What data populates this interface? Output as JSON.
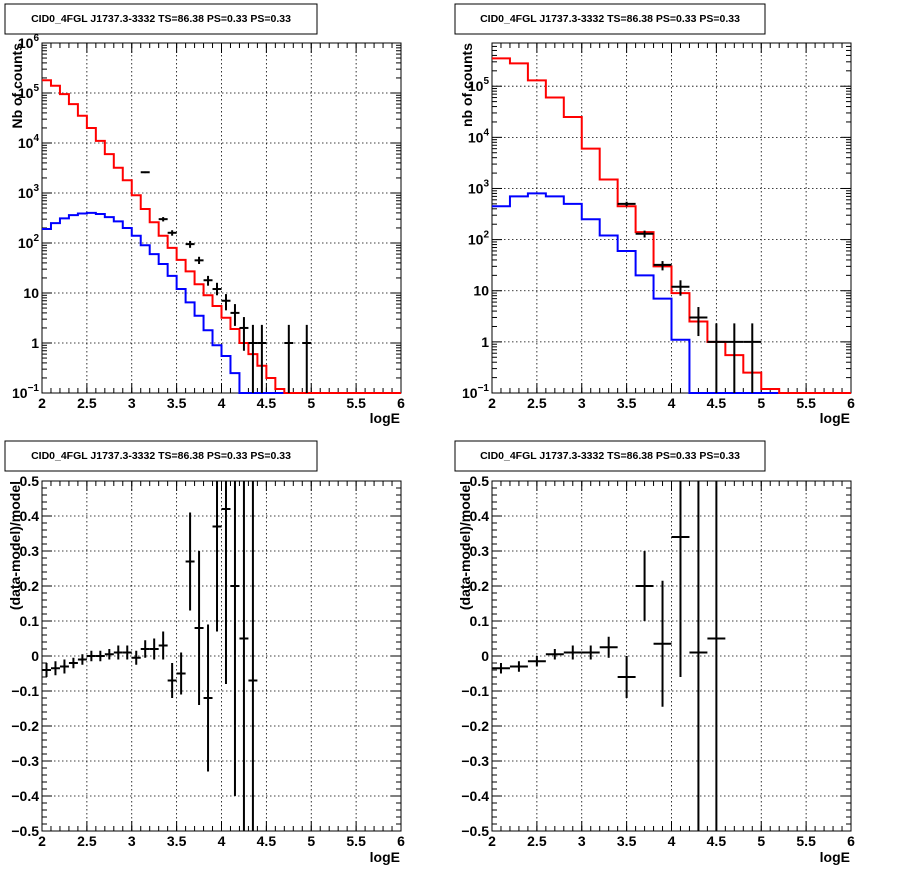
{
  "chart_data": [
    {
      "id": "top-left",
      "type": "histogram",
      "title": "CID0_4FGL J1737.3-3332 TS=86.38 PS=0.33 PS=0.33",
      "xlabel": "logE",
      "ylabel": "Nb of counts",
      "xlim": [
        2,
        6
      ],
      "ylim": [
        0.1,
        1000000
      ],
      "yscale": "log",
      "grid": true,
      "xticks": [
        "2",
        "2.5",
        "3",
        "3.5",
        "4",
        "4.5",
        "5",
        "5.5",
        "6"
      ],
      "yticks": [
        {
          "v": 0.1,
          "base": "10",
          "exp": "−1"
        },
        {
          "v": 1,
          "label": "1"
        },
        {
          "v": 10,
          "label": "10"
        },
        {
          "v": 100,
          "base": "10",
          "exp": "2"
        },
        {
          "v": 1000,
          "base": "10",
          "exp": "3"
        },
        {
          "v": 10000,
          "base": "10",
          "exp": "4"
        },
        {
          "v": 100000,
          "base": "10",
          "exp": "5"
        },
        {
          "v": 1000000,
          "base": "10",
          "exp": "6"
        }
      ],
      "bin_edges": [
        2.0,
        2.1,
        2.2,
        2.3,
        2.4,
        2.5,
        2.6,
        2.7,
        2.8,
        2.9,
        3.0,
        3.1,
        3.2,
        3.3,
        3.4,
        3.5,
        3.6,
        3.7,
        3.8,
        3.9,
        4.0,
        4.1,
        4.2,
        4.3,
        4.4,
        4.5,
        4.6,
        4.7,
        4.8,
        4.9,
        5.0,
        5.1,
        5.2,
        5.3,
        5.4,
        5.5,
        5.6,
        5.7,
        5.8,
        5.9,
        6.0
      ],
      "series": [
        {
          "kind": "step",
          "color": "#0000ff",
          "values": [
            190,
            250,
            310,
            360,
            390,
            400,
            380,
            330,
            270,
            200,
            140,
            90,
            60,
            38,
            22,
            12,
            6.5,
            3.5,
            1.8,
            0.9,
            0.55,
            0.25,
            0.1,
            0.1,
            0.1,
            0.1,
            0.1,
            0.1,
            0.1,
            0.1,
            0.1,
            0.1,
            0.1,
            0.1,
            0.1,
            0.1,
            0.1,
            0.1,
            0.1,
            0.1
          ]
        },
        {
          "kind": "step",
          "color": "#ff0000",
          "values": [
            180000,
            140000,
            95000,
            60000,
            35000,
            20000,
            11000,
            6000,
            3200,
            1800,
            900,
            480,
            260,
            140,
            80,
            46,
            27,
            15,
            9,
            5.5,
            3.2,
            1.9,
            1.0,
            0.6,
            0.35,
            0.2,
            0.12,
            0.1,
            0.1,
            0.1,
            0.1,
            0.1,
            0.1,
            0.1,
            0.1,
            0.1,
            0.1,
            0.1,
            0.1,
            0.1
          ]
        },
        {
          "kind": "errorbars",
          "color": "#000000",
          "points": [
            {
              "x": 3.15,
              "y": 2600,
              "lo": 2500,
              "hi": 2700
            },
            {
              "x": 3.35,
              "y": 300,
              "lo": 270,
              "hi": 330
            },
            {
              "x": 3.45,
              "y": 160,
              "lo": 140,
              "hi": 180
            },
            {
              "x": 3.65,
              "y": 95,
              "lo": 80,
              "hi": 110
            },
            {
              "x": 3.75,
              "y": 45,
              "lo": 38,
              "hi": 53
            },
            {
              "x": 3.85,
              "y": 18,
              "lo": 14,
              "hi": 22
            },
            {
              "x": 3.95,
              "y": 12,
              "lo": 9,
              "hi": 16
            },
            {
              "x": 4.05,
              "y": 7,
              "lo": 4.5,
              "hi": 9.5
            },
            {
              "x": 4.15,
              "y": 4,
              "lo": 2.2,
              "hi": 6
            },
            {
              "x": 4.25,
              "y": 2,
              "lo": 0.7,
              "hi": 3.3
            },
            {
              "x": 4.35,
              "y": 1,
              "lo": 0.1,
              "hi": 2.3
            },
            {
              "x": 4.45,
              "y": 1,
              "lo": 0.1,
              "hi": 2.3
            },
            {
              "x": 4.75,
              "y": 1,
              "lo": 0.1,
              "hi": 2.3
            },
            {
              "x": 4.95,
              "y": 1,
              "lo": 0.1,
              "hi": 2.3
            }
          ]
        }
      ]
    },
    {
      "id": "top-right",
      "type": "histogram",
      "title": "CID0_4FGL J1737.3-3332 TS=86.38 PS=0.33 PS=0.33",
      "xlabel": "logE",
      "ylabel": "nb of counts",
      "xlim": [
        2,
        6
      ],
      "ylim": [
        0.1,
        700000
      ],
      "yscale": "log",
      "grid": true,
      "xticks": [
        "2",
        "2.5",
        "3",
        "3.5",
        "4",
        "4.5",
        "5",
        "5.5",
        "6"
      ],
      "yticks": [
        {
          "v": 0.1,
          "base": "10",
          "exp": "−1"
        },
        {
          "v": 1,
          "label": "1"
        },
        {
          "v": 10,
          "label": "10"
        },
        {
          "v": 100,
          "base": "10",
          "exp": "2"
        },
        {
          "v": 1000,
          "base": "10",
          "exp": "3"
        },
        {
          "v": 10000,
          "base": "10",
          "exp": "4"
        },
        {
          "v": 100000,
          "base": "10",
          "exp": "5"
        }
      ],
      "bin_edges": [
        2.0,
        2.2,
        2.4,
        2.6,
        2.8,
        3.0,
        3.2,
        3.4,
        3.6,
        3.8,
        4.0,
        4.2,
        4.4,
        4.6,
        4.8,
        5.0,
        5.2,
        5.4,
        5.6,
        5.8,
        6.0
      ],
      "series": [
        {
          "kind": "step",
          "color": "#0000ff",
          "values": [
            450,
            700,
            800,
            700,
            500,
            250,
            120,
            60,
            20,
            7,
            1.1,
            0.1,
            0.1,
            0.1,
            0.1,
            0.1,
            0.1,
            0.1,
            0.1,
            0.1
          ]
        },
        {
          "kind": "step",
          "color": "#ff0000",
          "values": [
            350000,
            280000,
            130000,
            60000,
            25000,
            6000,
            1500,
            450,
            140,
            30,
            9,
            2.5,
            1.0,
            0.55,
            0.25,
            0.12,
            0.1,
            0.1,
            0.1,
            0.1
          ]
        },
        {
          "kind": "errorbars",
          "color": "#000000",
          "points": [
            {
              "x": 3.5,
              "y": 500,
              "lo": 450,
              "hi": 550
            },
            {
              "x": 3.7,
              "y": 130,
              "lo": 110,
              "hi": 150
            },
            {
              "x": 3.9,
              "y": 32,
              "lo": 25,
              "hi": 38
            },
            {
              "x": 4.1,
              "y": 12,
              "lo": 8,
              "hi": 16
            },
            {
              "x": 4.3,
              "y": 3,
              "lo": 1.3,
              "hi": 4.8
            },
            {
              "x": 4.5,
              "y": 1,
              "lo": 0.1,
              "hi": 2.3
            },
            {
              "x": 4.7,
              "y": 1,
              "lo": 0.1,
              "hi": 2.3
            },
            {
              "x": 4.9,
              "y": 1,
              "lo": 0.1,
              "hi": 2.3
            }
          ]
        }
      ]
    },
    {
      "id": "bottom-left",
      "type": "scatter",
      "title": "CID0_4FGL J1737.3-3332 TS=86.38 PS=0.33 PS=0.33",
      "xlabel": "logE",
      "ylabel": "(data-model)/model",
      "xlim": [
        2,
        6
      ],
      "ylim": [
        -0.5,
        0.5
      ],
      "yscale": "linear",
      "grid": true,
      "xticks": [
        "2",
        "2.5",
        "3",
        "3.5",
        "4",
        "4.5",
        "5",
        "5.5",
        "6"
      ],
      "yticks": [
        {
          "v": -0.5,
          "label": "−0.5"
        },
        {
          "v": -0.4,
          "label": "−0.4"
        },
        {
          "v": -0.3,
          "label": "−0.3"
        },
        {
          "v": -0.2,
          "label": "−0.2"
        },
        {
          "v": -0.1,
          "label": "−0.1"
        },
        {
          "v": 0,
          "label": "0"
        },
        {
          "v": 0.1,
          "label": "0.1"
        },
        {
          "v": 0.2,
          "label": "0.2"
        },
        {
          "v": 0.3,
          "label": "0.3"
        },
        {
          "v": 0.4,
          "label": "0.4"
        },
        {
          "v": 0.5,
          "label": "0.5"
        }
      ],
      "half_width": 0.05,
      "points": [
        {
          "x": 2.05,
          "y": -0.04,
          "err": 0.02
        },
        {
          "x": 2.15,
          "y": -0.035,
          "err": 0.02
        },
        {
          "x": 2.25,
          "y": -0.03,
          "err": 0.02
        },
        {
          "x": 2.35,
          "y": -0.02,
          "err": 0.015
        },
        {
          "x": 2.45,
          "y": -0.01,
          "err": 0.015
        },
        {
          "x": 2.55,
          "y": 0.0,
          "err": 0.015
        },
        {
          "x": 2.65,
          "y": 0.0,
          "err": 0.015
        },
        {
          "x": 2.75,
          "y": 0.005,
          "err": 0.015
        },
        {
          "x": 2.85,
          "y": 0.01,
          "err": 0.02
        },
        {
          "x": 2.95,
          "y": 0.01,
          "err": 0.02
        },
        {
          "x": 3.05,
          "y": -0.005,
          "err": 0.02
        },
        {
          "x": 3.15,
          "y": 0.02,
          "err": 0.025
        },
        {
          "x": 3.25,
          "y": 0.02,
          "err": 0.03
        },
        {
          "x": 3.35,
          "y": 0.03,
          "err": 0.04
        },
        {
          "x": 3.45,
          "y": -0.07,
          "err": 0.05
        },
        {
          "x": 3.55,
          "y": -0.05,
          "err": 0.06
        },
        {
          "x": 3.65,
          "y": 0.27,
          "err": 0.14
        },
        {
          "x": 3.75,
          "y": 0.08,
          "err": 0.22
        },
        {
          "x": 3.85,
          "y": -0.12,
          "err": 0.21
        },
        {
          "x": 3.95,
          "y": 0.37,
          "err": 0.3
        },
        {
          "x": 4.05,
          "y": 0.42,
          "err": 0.5
        },
        {
          "x": 4.15,
          "y": 0.2,
          "err": 0.6
        },
        {
          "x": 4.25,
          "y": 0.05,
          "err": 1.0
        },
        {
          "x": 4.35,
          "y": -0.07,
          "err": 1.0
        }
      ]
    },
    {
      "id": "bottom-right",
      "type": "scatter",
      "title": "CID0_4FGL J1737.3-3332 TS=86.38 PS=0.33 PS=0.33",
      "xlabel": "logE",
      "ylabel": "(data-model)/model",
      "xlim": [
        2,
        6
      ],
      "ylim": [
        -0.5,
        0.5
      ],
      "yscale": "linear",
      "grid": true,
      "xticks": [
        "2",
        "2.5",
        "3",
        "3.5",
        "4",
        "4.5",
        "5",
        "5.5",
        "6"
      ],
      "yticks": [
        {
          "v": -0.5,
          "label": "−0.5"
        },
        {
          "v": -0.4,
          "label": "−0.4"
        },
        {
          "v": -0.3,
          "label": "−0.3"
        },
        {
          "v": -0.2,
          "label": "−0.2"
        },
        {
          "v": -0.1,
          "label": "−0.1"
        },
        {
          "v": 0,
          "label": "0"
        },
        {
          "v": 0.1,
          "label": "0.1"
        },
        {
          "v": 0.2,
          "label": "0.2"
        },
        {
          "v": 0.3,
          "label": "0.3"
        },
        {
          "v": 0.4,
          "label": "0.4"
        },
        {
          "v": 0.5,
          "label": "0.5"
        }
      ],
      "half_width": 0.1,
      "points": [
        {
          "x": 2.1,
          "y": -0.035,
          "err": 0.015
        },
        {
          "x": 2.3,
          "y": -0.03,
          "err": 0.015
        },
        {
          "x": 2.5,
          "y": -0.015,
          "err": 0.015
        },
        {
          "x": 2.7,
          "y": 0.005,
          "err": 0.015
        },
        {
          "x": 2.9,
          "y": 0.01,
          "err": 0.02
        },
        {
          "x": 3.1,
          "y": 0.01,
          "err": 0.02
        },
        {
          "x": 3.3,
          "y": 0.025,
          "err": 0.03
        },
        {
          "x": 3.5,
          "y": -0.06,
          "err": 0.06
        },
        {
          "x": 3.7,
          "y": 0.2,
          "err": 0.1
        },
        {
          "x": 3.9,
          "y": 0.035,
          "err": 0.18
        },
        {
          "x": 4.1,
          "y": 0.34,
          "err": 0.4
        },
        {
          "x": 4.3,
          "y": 0.01,
          "err": 1.0
        },
        {
          "x": 4.5,
          "y": 0.05,
          "err": 1.0
        }
      ]
    }
  ]
}
